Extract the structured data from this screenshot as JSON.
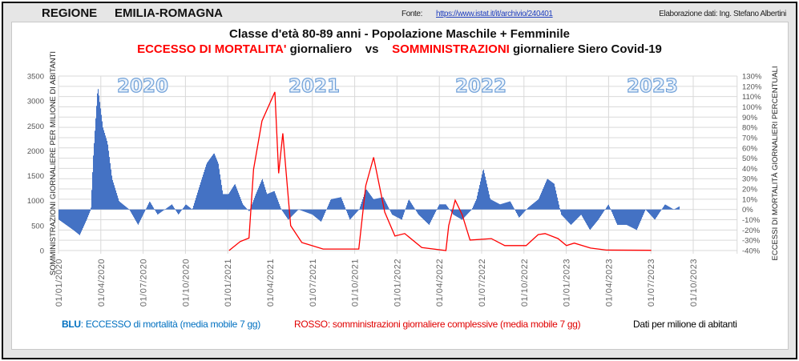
{
  "header": {
    "region_label": "REGIONE",
    "region_name": "EMILIA-ROMAGNA",
    "source_label": "Fonte:",
    "source_link": "https://www.istat.it/it/archivio/240401",
    "credit": "Elaborazione dati: Ing. Stefano Albertini"
  },
  "title": {
    "line1": "Classe d'età 80-89 anni - Popolazione Maschile + Femminile",
    "part_a": "ECCESSO DI MORTALITA'",
    "part_b": " giornaliero    vs    ",
    "part_c": "SOMMINISTRAZIONI",
    "part_d": " giornaliere Siero Covid-19"
  },
  "legend": {
    "blue_a": "BLU",
    "blue_b": ": ECCESSO di mortalità  (media mobile 7 gg)",
    "red": "ROSSO: somministrazioni giornaliere complessive (media mobile 7 gg)",
    "note": "Dati per milione di abitanti"
  },
  "colors": {
    "blue": "#4472c4",
    "red": "#ff0000",
    "legend_blue": "#0070c0",
    "grid": "#d9d9d9"
  },
  "chart_data": {
    "type": "bar+line",
    "ylabel": "SOMMINISTRAZIONI GIORNALIERE PER MILIONE DI ABITANTI",
    "y2label": "ECCESSI DI MORTALITÀ GIORNALIERI PERCENTUALI",
    "ylim": [
      0,
      3500
    ],
    "yticks": [
      "0",
      "500",
      "1000",
      "1500",
      "2000",
      "2500",
      "3000",
      "3500"
    ],
    "y2lim": [
      -40,
      130
    ],
    "y2ticks": [
      "-40%",
      "-30%",
      "-20%",
      "-10%",
      "0%",
      "10%",
      "20%",
      "30%",
      "40%",
      "50%",
      "60%",
      "70%",
      "80%",
      "90%",
      "100%",
      "110%",
      "120%",
      "130%"
    ],
    "xticks": [
      "01/01/2020",
      "01/04/2020",
      "01/07/2020",
      "01/10/2020",
      "01/01/2021",
      "01/04/2021",
      "01/07/2021",
      "01/10/2021",
      "01/01/2022",
      "01/04/2022",
      "01/07/2022",
      "01/10/2022",
      "01/01/2023",
      "01/04/2023",
      "01/07/2023",
      "01/10/2023"
    ],
    "year_labels": [
      "2020",
      "2021",
      "2022",
      "2023"
    ],
    "grid": true,
    "series": [
      {
        "name": "Eccesso di mortalità (%)",
        "axis": "right",
        "kind": "bar",
        "points": [
          [
            "2020-01-01",
            -10
          ],
          [
            "2020-02-01",
            -20
          ],
          [
            "2020-02-15",
            -25
          ],
          [
            "2020-03-01",
            -10
          ],
          [
            "2020-03-10",
            0
          ],
          [
            "2020-03-15",
            50
          ],
          [
            "2020-03-25",
            120
          ],
          [
            "2020-04-05",
            80
          ],
          [
            "2020-04-15",
            65
          ],
          [
            "2020-04-25",
            30
          ],
          [
            "2020-05-10",
            8
          ],
          [
            "2020-06-01",
            0
          ],
          [
            "2020-06-20",
            -15
          ],
          [
            "2020-07-01",
            -5
          ],
          [
            "2020-07-15",
            8
          ],
          [
            "2020-08-01",
            -5
          ],
          [
            "2020-09-01",
            5
          ],
          [
            "2020-09-15",
            -5
          ],
          [
            "2020-10-01",
            5
          ],
          [
            "2020-10-15",
            0
          ],
          [
            "2020-11-01",
            25
          ],
          [
            "2020-11-15",
            45
          ],
          [
            "2020-12-01",
            55
          ],
          [
            "2020-12-10",
            45
          ],
          [
            "2020-12-20",
            15
          ],
          [
            "2021-01-01",
            15
          ],
          [
            "2021-01-15",
            25
          ],
          [
            "2021-02-01",
            5
          ],
          [
            "2021-02-15",
            -2
          ],
          [
            "2021-03-01",
            15
          ],
          [
            "2021-03-15",
            30
          ],
          [
            "2021-03-25",
            15
          ],
          [
            "2021-04-10",
            18
          ],
          [
            "2021-04-25",
            0
          ],
          [
            "2021-05-10",
            -10
          ],
          [
            "2021-06-01",
            0
          ],
          [
            "2021-07-01",
            -5
          ],
          [
            "2021-07-20",
            -12
          ],
          [
            "2021-08-10",
            10
          ],
          [
            "2021-09-01",
            12
          ],
          [
            "2021-09-20",
            -10
          ],
          [
            "2021-10-10",
            0
          ],
          [
            "2021-10-25",
            20
          ],
          [
            "2021-11-10",
            10
          ],
          [
            "2021-12-01",
            12
          ],
          [
            "2021-12-20",
            -5
          ],
          [
            "2022-01-10",
            -10
          ],
          [
            "2022-01-25",
            10
          ],
          [
            "2022-02-15",
            -5
          ],
          [
            "2022-03-10",
            -15
          ],
          [
            "2022-04-01",
            5
          ],
          [
            "2022-04-15",
            5
          ],
          [
            "2022-05-01",
            -5
          ],
          [
            "2022-05-20",
            -10
          ],
          [
            "2022-06-10",
            0
          ],
          [
            "2022-06-20",
            10
          ],
          [
            "2022-07-05",
            40
          ],
          [
            "2022-07-20",
            10
          ],
          [
            "2022-08-10",
            5
          ],
          [
            "2022-09-01",
            8
          ],
          [
            "2022-09-20",
            -8
          ],
          [
            "2022-10-10",
            2
          ],
          [
            "2022-11-01",
            10
          ],
          [
            "2022-11-20",
            30
          ],
          [
            "2022-12-05",
            25
          ],
          [
            "2022-12-20",
            -5
          ],
          [
            "2023-01-10",
            -15
          ],
          [
            "2023-02-01",
            -5
          ],
          [
            "2023-02-20",
            -20
          ],
          [
            "2023-03-10",
            -10
          ],
          [
            "2023-04-01",
            5
          ],
          [
            "2023-04-20",
            -15
          ],
          [
            "2023-05-10",
            -15
          ],
          [
            "2023-06-01",
            -20
          ],
          [
            "2023-06-20",
            0
          ],
          [
            "2023-07-10",
            -10
          ],
          [
            "2023-08-01",
            5
          ],
          [
            "2023-08-20",
            0
          ],
          [
            "2023-09-01",
            3
          ]
        ]
      },
      {
        "name": "Somministrazioni giornaliere",
        "axis": "left",
        "kind": "line",
        "points": [
          [
            "2021-01-03",
            0
          ],
          [
            "2021-01-27",
            180
          ],
          [
            "2021-02-15",
            250
          ],
          [
            "2021-02-25",
            1630
          ],
          [
            "2021-03-15",
            2600
          ],
          [
            "2021-04-12",
            3180
          ],
          [
            "2021-04-20",
            1550
          ],
          [
            "2021-04-29",
            2350
          ],
          [
            "2021-05-16",
            500
          ],
          [
            "2021-06-09",
            160
          ],
          [
            "2021-07-25",
            30
          ],
          [
            "2021-10-10",
            30
          ],
          [
            "2021-10-25",
            1300
          ],
          [
            "2021-11-11",
            1870
          ],
          [
            "2021-12-05",
            770
          ],
          [
            "2021-12-27",
            290
          ],
          [
            "2022-01-17",
            340
          ],
          [
            "2022-02-23",
            60
          ],
          [
            "2022-04-16",
            0
          ],
          [
            "2022-04-22",
            500
          ],
          [
            "2022-05-06",
            1010
          ],
          [
            "2022-05-21",
            720
          ],
          [
            "2022-06-07",
            210
          ],
          [
            "2022-07-23",
            240
          ],
          [
            "2022-08-21",
            100
          ],
          [
            "2022-10-06",
            100
          ],
          [
            "2022-11-01",
            320
          ],
          [
            "2022-11-16",
            341
          ],
          [
            "2022-12-14",
            240
          ],
          [
            "2023-01-01",
            100
          ],
          [
            "2023-01-18",
            150
          ],
          [
            "2023-02-22",
            50
          ],
          [
            "2023-03-28",
            10
          ],
          [
            "2023-07-03",
            5
          ]
        ]
      }
    ]
  }
}
